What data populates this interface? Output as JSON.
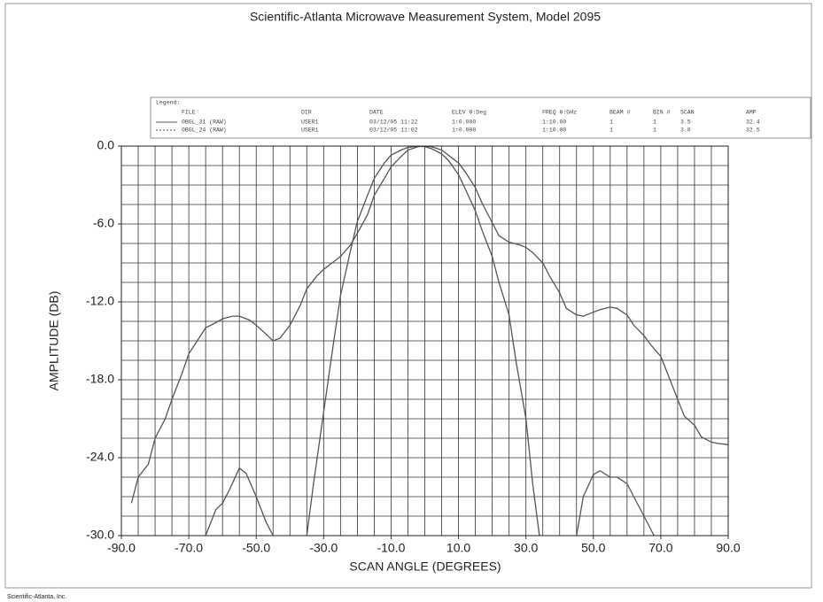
{
  "chart_data": {
    "type": "line",
    "title": "Scientific-Atlanta Microwave Measurement System, Model 2095",
    "xlabel": "SCAN ANGLE (DEGREES)",
    "ylabel": "AMPLITUDE (DB)",
    "footer": "Scientific-Atlanta, Inc.",
    "xlim": [
      -90,
      90
    ],
    "ylim": [
      -30,
      0
    ],
    "xticks": [
      {
        "value": -90,
        "label": "-90.0"
      },
      {
        "value": -70,
        "label": "-70.0"
      },
      {
        "value": -50,
        "label": "-50.0"
      },
      {
        "value": -30,
        "label": "-30.0"
      },
      {
        "value": -10,
        "label": "-10.0"
      },
      {
        "value": 10,
        "label": "10.0"
      },
      {
        "value": 30,
        "label": "30.0"
      },
      {
        "value": 50,
        "label": "50.0"
      },
      {
        "value": 70,
        "label": "70.0"
      },
      {
        "value": 90,
        "label": "90.0"
      }
    ],
    "yticks": [
      {
        "value": 0,
        "label": "0.0"
      },
      {
        "value": -6,
        "label": "-6.0"
      },
      {
        "value": -12,
        "label": "-12.0"
      },
      {
        "value": -18,
        "label": "-18.0"
      },
      {
        "value": -24,
        "label": "-24.0"
      },
      {
        "value": -30,
        "label": "-30.0"
      }
    ],
    "grid": true,
    "xgrid_step": 5,
    "ygrid_step": 1.5,
    "legend": {
      "title": "Legend:",
      "columns": [
        "FILE",
        "DIR",
        "DATE",
        "ELEV θ:Deg",
        "FREQ θ:GHz",
        "BEAM #",
        "BIN #",
        "SCAN",
        "AMP"
      ]
    },
    "series": [
      {
        "name": "0BGL_31 (RAW)",
        "color": "#555555",
        "dash": "none",
        "info": [
          "USER1",
          "03/12/05 11:22",
          "1:0.000",
          "1:10.00",
          "1",
          "1",
          "3.5",
          "32.4"
        ],
        "x": [
          -87,
          -85,
          -82,
          -80,
          -77,
          -75,
          -72,
          -70,
          -67,
          -65,
          -62,
          -60,
          -57,
          -55,
          -52,
          -50,
          -47,
          -45,
          -43,
          -40,
          -37,
          -35,
          -32,
          -30,
          -27,
          -25,
          -22,
          -20,
          -17,
          -15,
          -12,
          -10,
          -7,
          -5,
          -2,
          0,
          2,
          5,
          8,
          10,
          12,
          15,
          17,
          20,
          22,
          25,
          28,
          30,
          32,
          35,
          37,
          40,
          42,
          45,
          47,
          50,
          52,
          55,
          57,
          60,
          62,
          65,
          67,
          70,
          72,
          75,
          77,
          80,
          82,
          85,
          87,
          90
        ],
        "values": [
          -27.5,
          -25.5,
          -24.5,
          -22.5,
          -21,
          -19.5,
          -17.5,
          -16,
          -14.8,
          -14,
          -13.6,
          -13.3,
          -13.1,
          -13.1,
          -13.4,
          -13.8,
          -14.5,
          -15,
          -14.8,
          -13.8,
          -12.3,
          -11,
          -10,
          -9.5,
          -8.9,
          -8.5,
          -7.6,
          -6.7,
          -5.3,
          -3.8,
          -2.5,
          -1.6,
          -0.8,
          -0.3,
          -0.05,
          0,
          -0.05,
          -0.3,
          -0.9,
          -1.3,
          -2,
          -3.2,
          -4.4,
          -5.9,
          -6.9,
          -7.4,
          -7.6,
          -7.8,
          -8.2,
          -9,
          -10,
          -11.3,
          -12.5,
          -13,
          -13.1,
          -12.8,
          -12.6,
          -12.4,
          -12.5,
          -13,
          -13.8,
          -14.6,
          -15.3,
          -16.2,
          -17.5,
          -19.5,
          -20.8,
          -21.5,
          -22.4,
          -22.8,
          -22.9,
          -23
        ]
      },
      {
        "name": "0BGL_24 (RAW)",
        "color": "#555555",
        "dash": "2 2",
        "info": [
          "USER1",
          "03/12/05 11:02",
          "1:0.000",
          "1:10.00",
          "1",
          "1",
          "3.0",
          "32.5"
        ],
        "x": [
          -65,
          -62,
          -60,
          -58,
          -55,
          -53,
          -50,
          -47,
          -45,
          -40,
          -35,
          -33,
          -30,
          -27,
          -25,
          -22,
          -20,
          -17,
          -15,
          -12,
          -10,
          -7,
          -5,
          -2,
          0,
          2,
          5,
          7,
          10,
          12,
          15,
          17,
          20,
          22,
          25,
          27,
          30,
          32,
          34,
          40,
          45,
          47,
          50,
          52,
          55,
          57,
          60,
          62,
          65,
          68
        ],
        "values": [
          -30,
          -28,
          -27.5,
          -26.5,
          -24.8,
          -25.2,
          -27,
          -29,
          -30,
          null,
          -30,
          -26,
          -20.5,
          -15,
          -11.5,
          -8,
          -5.8,
          -3.8,
          -2.5,
          -1.3,
          -0.7,
          -0.3,
          -0.1,
          0,
          -0.05,
          -0.2,
          -0.6,
          -1.1,
          -2.2,
          -3.3,
          -5,
          -6.5,
          -8.5,
          -10.5,
          -13,
          -16.5,
          -21,
          -26,
          -30,
          null,
          -30,
          -27,
          -25.3,
          -25,
          -25.5,
          -25.5,
          -26,
          -27,
          -28.5,
          -30
        ]
      }
    ]
  }
}
